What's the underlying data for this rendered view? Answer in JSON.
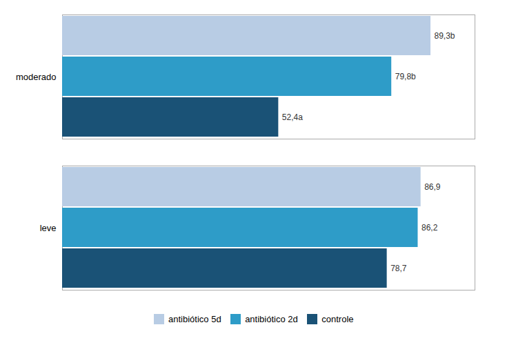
{
  "chart_data": {
    "type": "bar",
    "orientation": "horizontal",
    "categories": [
      "moderado",
      "leve"
    ],
    "series": [
      {
        "name": "antibiótico 5d",
        "color": "#b8cce4",
        "values": [
          89.3,
          86.9
        ],
        "value_labels": [
          "89,3b",
          "86,9"
        ]
      },
      {
        "name": "antibiótico 2d",
        "color": "#2e9cc8",
        "values": [
          79.8,
          86.2
        ],
        "value_labels": [
          "79,8b",
          "86,2"
        ]
      },
      {
        "name": "controle",
        "color": "#1a5276",
        "values": [
          52.4,
          78.7
        ],
        "value_labels": [
          "52,4a",
          "78,7"
        ]
      }
    ],
    "xlim": [
      0,
      100
    ],
    "xticks": [],
    "tick_labels": "y",
    "data_labels": true,
    "legend": "bottom",
    "grid": false
  }
}
